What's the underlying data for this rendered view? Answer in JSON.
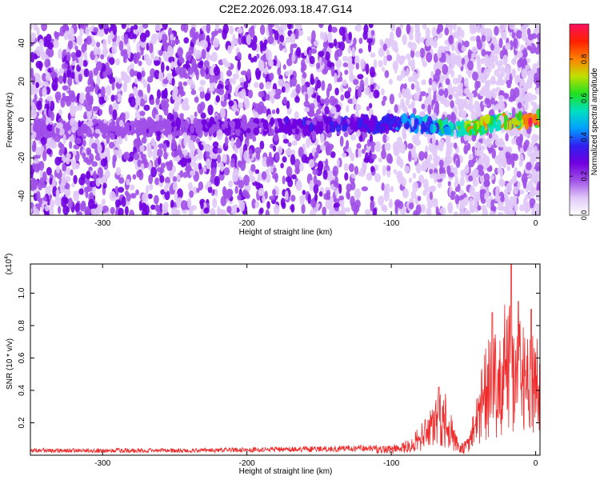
{
  "figure_title": "C2E2.2026.093.18.47.G14",
  "chart_data": [
    {
      "type": "heatmap",
      "name": "spectrogram",
      "xlabel": "Height of straight line (km)",
      "ylabel": "Frequency (Hz)",
      "xlim": [
        -350,
        3
      ],
      "ylim": [
        -50,
        50
      ],
      "xticks": [
        -300,
        -200,
        -100,
        0
      ],
      "xtick_labels": [
        "-300",
        "-200",
        "-100",
        "0"
      ],
      "yticks": [
        -40,
        -20,
        0,
        20,
        40
      ],
      "ytick_labels": [
        "-40",
        "-20",
        "0",
        "20",
        "40"
      ],
      "colorbar": {
        "label": "Normalized spectral amplitude",
        "range": [
          0,
          0.98
        ],
        "ticks": [
          0,
          0.2,
          0.4,
          0.6,
          0.8
        ],
        "tick_labels": [
          "0.0",
          "0.2",
          "0.4",
          "0.6",
          "0.8"
        ],
        "colors": [
          "#ffffff",
          "#e0c8f8",
          "#a050e8",
          "#7000e0",
          "#3020f0",
          "#00a0ff",
          "#00e0c0",
          "#20e020",
          "#c0e000",
          "#ff8000",
          "#ff2000",
          "#ff1060"
        ]
      },
      "ridge": {
        "x": [
          -350,
          -300,
          -250,
          -200,
          -150,
          -100,
          -80,
          -60,
          -50,
          -40,
          -30,
          -20,
          -10,
          0
        ],
        "freq": [
          -6,
          -5,
          -4,
          -4,
          -3,
          -2,
          -2,
          -4,
          -5,
          -4,
          -2,
          -1,
          0,
          0
        ],
        "amplitude": [
          0.2,
          0.2,
          0.25,
          0.28,
          0.32,
          0.4,
          0.5,
          0.6,
          0.72,
          0.88,
          0.7,
          0.82,
          0.96,
          0.98
        ]
      }
    },
    {
      "type": "line",
      "name": "snr",
      "xlabel": "Height of straight line (km)",
      "ylabel": "SNR (10 * v/v)",
      "scale_label": "(x10",
      "scale_exp": "4",
      "scale_close": ")",
      "xlim": [
        -350,
        3
      ],
      "ylim": [
        0,
        1.18
      ],
      "xticks": [
        -300,
        -200,
        -100,
        0
      ],
      "xtick_labels": [
        "-300",
        "-200",
        "-100",
        "0"
      ],
      "yticks": [
        0.2,
        0.4,
        0.6,
        0.8,
        1.0
      ],
      "ytick_labels": [
        "0.2",
        "0.4",
        "0.6",
        "0.8",
        "1.0"
      ],
      "line_color": "#ee2a2a",
      "x": [
        -350,
        -300,
        -250,
        -200,
        -150,
        -120,
        -100,
        -90,
        -80,
        -75,
        -70,
        -65,
        -60,
        -55,
        -50,
        -45,
        -40,
        -35,
        -30,
        -25,
        -20,
        -15,
        -10,
        -5,
        0,
        3
      ],
      "y": [
        0.03,
        0.03,
        0.03,
        0.035,
        0.04,
        0.045,
        0.05,
        0.08,
        0.15,
        0.22,
        0.3,
        0.38,
        0.25,
        0.12,
        0.06,
        0.15,
        0.35,
        0.55,
        0.68,
        0.72,
        0.82,
        0.7,
        0.78,
        0.62,
        0.65,
        0.5
      ],
      "peaks": [
        {
          "x": -67,
          "y": 0.42
        },
        {
          "x": -30,
          "y": 0.88
        },
        {
          "x": -17,
          "y": 1.18
        },
        {
          "x": -12,
          "y": 0.95
        },
        {
          "x": -3,
          "y": 0.9
        }
      ]
    }
  ]
}
